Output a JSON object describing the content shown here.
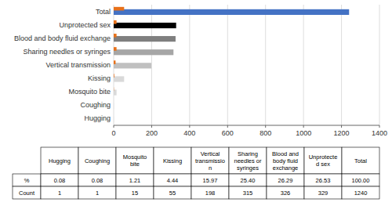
{
  "chart_data": {
    "type": "bar",
    "orientation": "horizontal",
    "grid": true,
    "categories": [
      "Total",
      "Unprotected sex",
      "Blood and body fluid exchange",
      "Sharing needles or syringes",
      "Vertical transmission",
      "Kissing",
      "Mosquito bite",
      "Coughing",
      "Hugging"
    ],
    "series": [
      {
        "values": [
          1240,
          329,
          326,
          315,
          198,
          55,
          15,
          1,
          1
        ],
        "colors": [
          "#4472c4",
          "#000000",
          "#7f7f7f",
          "#a6a6a6",
          "#c0c0c0",
          "#d9d9d9",
          "#d9d9d9",
          "#d9d9d9",
          "#d9d9d9"
        ]
      },
      {
        "values": [
          55,
          15,
          15,
          15,
          10,
          3,
          1,
          0,
          0
        ],
        "color": "#e8711a"
      }
    ],
    "xlim": [
      0,
      1400
    ],
    "xticks": [
      0,
      200,
      400,
      600,
      800,
      1000,
      1200,
      1400
    ],
    "table": {
      "col_headers": [
        "Hugging",
        "Coughing",
        "Mosquito\nbite",
        "Kissing",
        "Vertical\ntransmissio\nn",
        "Sharing\nneedles or\nsyringes",
        "Blood and\nbody fluid\nexchange",
        "Unprotecte\nd sex",
        "Total"
      ],
      "row_headers": [
        "%",
        "Count"
      ],
      "rows": [
        [
          "0.08",
          "0.08",
          "1.21",
          "4.44",
          "15.97",
          "25.40",
          "26.29",
          "26.53",
          "100.00"
        ],
        [
          "1",
          "1",
          "15",
          "55",
          "198",
          "315",
          "326",
          "329",
          "1240"
        ]
      ]
    }
  }
}
